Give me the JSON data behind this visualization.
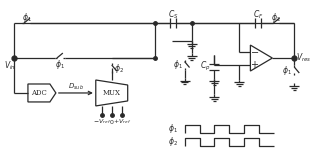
{
  "bg_color": "#ffffff",
  "line_color": "#2a2a2a",
  "text_color": "#2a2a2a",
  "fig_w": 3.12,
  "fig_h": 1.61,
  "dpi": 100
}
